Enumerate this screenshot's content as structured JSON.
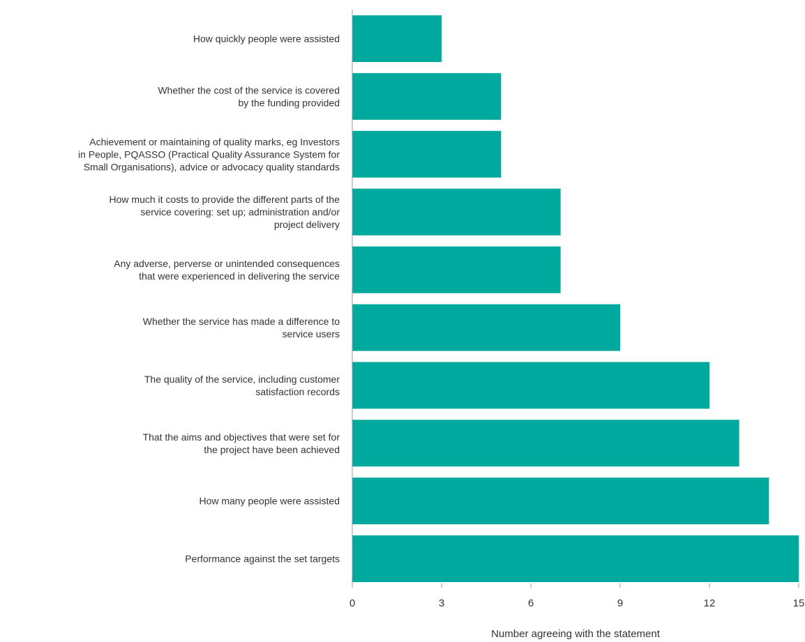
{
  "chart_data": {
    "type": "bar",
    "orientation": "horizontal",
    "categories": [
      "How quickly people were assisted",
      "Whether the cost of the service is covered by the funding provided",
      "Achievement or maintaining of quality marks, eg Investors in People, PQASSO (Practical Quality Assurance System for Small Organisations), advice or advocacy quality standards",
      "How much it costs to provide the different parts of the service covering: set up; administration and/or project delivery",
      "Any adverse, perverse or unintended consequences that were experienced in delivering the service",
      "Whether the service has made a difference to service users",
      "The quality of the service, including customer satisfaction records",
      "That the aims and objectives that were set for the project have been achieved",
      "How many people were assisted",
      "Performance against the set targets"
    ],
    "category_lines": [
      [
        "How quickly people were assisted"
      ],
      [
        "Whether the cost of the service is covered",
        "by the funding provided"
      ],
      [
        "Achievement or maintaining of quality marks, eg Investors",
        "in People, PQASSO (Practical Quality Assurance System for",
        "Small Organisations), advice or advocacy quality standards"
      ],
      [
        "How much it costs to provide the different parts of the",
        "service covering: set up; administration and/or",
        "project delivery"
      ],
      [
        "Any adverse, perverse or unintended consequences",
        "that were experienced in delivering the service"
      ],
      [
        "Whether the service has made a difference to",
        "service users"
      ],
      [
        "The quality of the service, including customer",
        "satisfaction records"
      ],
      [
        "That the aims and objectives that were set for",
        "the project have been achieved"
      ],
      [
        "How many people were assisted"
      ],
      [
        "Performance against the set targets"
      ]
    ],
    "values": [
      3,
      5,
      5,
      7,
      7,
      9,
      12,
      13,
      14,
      15
    ],
    "xlabel": "Number agreeing with the statement",
    "xlim": [
      0,
      15
    ],
    "xticks": [
      0,
      3,
      6,
      9,
      12,
      15
    ],
    "grid": false,
    "legend": "none",
    "bar_color": "#00a99d",
    "axis_color": "#999999"
  }
}
